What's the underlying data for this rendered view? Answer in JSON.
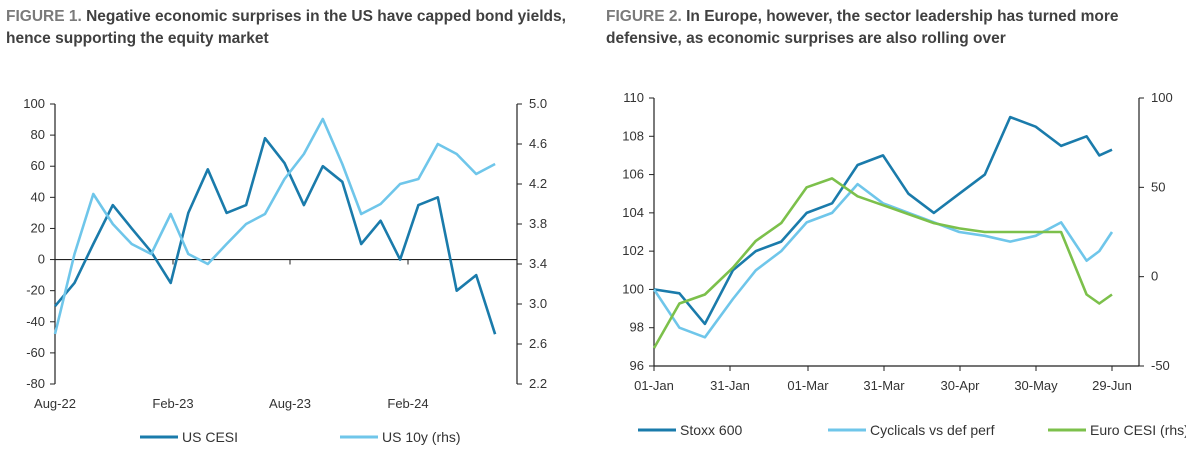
{
  "figure1": {
    "label": "FIGURE 1.",
    "title": "Negative economic surprises in the US have capped bond yields, hence supporting the equity market",
    "chart_data": {
      "type": "line",
      "x_ticks": [
        "Aug-22",
        "Feb-23",
        "Aug-23",
        "Feb-24"
      ],
      "ylim_left": [
        -80,
        100
      ],
      "yticks_left": [
        -80,
        -60,
        -40,
        -20,
        0,
        20,
        40,
        60,
        80,
        100
      ],
      "ylim_right": [
        2.2,
        5.0
      ],
      "yticks_right": [
        "2.2",
        "2.6",
        "3.0",
        "3.4",
        "3.8",
        "4.2",
        "4.6",
        "5.0"
      ],
      "legend_position": "bottom",
      "series": [
        {
          "name": "US CESI",
          "axis": "left",
          "color": "#1a7bab",
          "x": [
            "2022-08-01",
            "2022-09-01",
            "2022-10-01",
            "2022-11-01",
            "2022-12-01",
            "2023-01-01",
            "2023-02-01",
            "2023-03-01",
            "2023-04-01",
            "2023-05-01",
            "2023-06-01",
            "2023-07-01",
            "2023-08-01",
            "2023-09-01",
            "2023-10-01",
            "2023-11-01",
            "2023-12-01",
            "2024-01-01",
            "2024-02-01",
            "2024-03-01",
            "2024-04-01",
            "2024-05-01",
            "2024-06-01",
            "2024-07-01"
          ],
          "values": [
            -30,
            -15,
            10,
            35,
            20,
            5,
            -15,
            30,
            58,
            30,
            35,
            78,
            62,
            35,
            60,
            50,
            10,
            25,
            0,
            35,
            40,
            -20,
            -10,
            -48
          ]
        },
        {
          "name": "US 10y (rhs)",
          "axis": "right",
          "color": "#6fc6ea",
          "x": [
            "2022-08-01",
            "2022-09-01",
            "2022-10-01",
            "2022-11-01",
            "2022-12-01",
            "2023-01-01",
            "2023-02-01",
            "2023-03-01",
            "2023-04-01",
            "2023-05-01",
            "2023-06-01",
            "2023-07-01",
            "2023-08-01",
            "2023-09-01",
            "2023-10-01",
            "2023-11-01",
            "2023-12-01",
            "2024-01-01",
            "2024-02-01",
            "2024-03-01",
            "2024-04-01",
            "2024-05-01",
            "2024-06-01",
            "2024-07-01"
          ],
          "values": [
            2.7,
            3.5,
            4.1,
            3.8,
            3.6,
            3.5,
            3.9,
            3.5,
            3.4,
            3.6,
            3.8,
            3.9,
            4.25,
            4.5,
            4.85,
            4.4,
            3.9,
            4.0,
            4.2,
            4.25,
            4.6,
            4.5,
            4.3,
            4.4
          ]
        }
      ]
    }
  },
  "figure2": {
    "label": "FIGURE 2.",
    "title": "In Europe, however, the sector leadership has turned more defensive, as economic surprises are also rolling over",
    "chart_data": {
      "type": "line",
      "x_ticks": [
        "01-Jan",
        "31-Jan",
        "01-Mar",
        "31-Mar",
        "30-Apr",
        "30-May",
        "29-Jun"
      ],
      "ylim_left": [
        96,
        110
      ],
      "yticks_left": [
        96,
        98,
        100,
        102,
        104,
        106,
        108,
        110
      ],
      "ylim_right": [
        -50,
        100
      ],
      "yticks_right": [
        -50,
        0,
        50,
        100
      ],
      "legend_position": "bottom",
      "series": [
        {
          "name": "Stoxx 600",
          "axis": "left",
          "color": "#1a7bab",
          "x": [
            0,
            10,
            20,
            31,
            40,
            50,
            60,
            70,
            80,
            90,
            100,
            110,
            120,
            130,
            140,
            150,
            160,
            170,
            175,
            180
          ],
          "values": [
            100,
            99.8,
            98.2,
            101,
            102,
            102.5,
            104,
            104.5,
            106.5,
            107,
            105,
            104,
            105,
            106,
            109,
            108.5,
            107.5,
            108,
            107,
            107.3
          ]
        },
        {
          "name": "Cyclicals vs def perf",
          "axis": "left",
          "color": "#6fc6ea",
          "x": [
            0,
            10,
            20,
            31,
            40,
            50,
            60,
            70,
            80,
            90,
            100,
            110,
            120,
            130,
            140,
            150,
            160,
            170,
            175,
            180
          ],
          "values": [
            100,
            98,
            97.5,
            99.5,
            101,
            102,
            103.5,
            104,
            105.5,
            104.5,
            104,
            103.5,
            103,
            102.8,
            102.5,
            102.8,
            103.5,
            101.5,
            102,
            103
          ]
        },
        {
          "name": "Euro CESI (rhs)",
          "axis": "right",
          "color": "#7cc04b",
          "x": [
            0,
            10,
            20,
            31,
            40,
            50,
            60,
            70,
            80,
            90,
            100,
            110,
            120,
            130,
            140,
            150,
            160,
            170,
            175,
            180
          ],
          "values": [
            -40,
            -15,
            -10,
            5,
            20,
            30,
            50,
            55,
            45,
            40,
            35,
            30,
            27,
            25,
            25,
            25,
            25,
            -10,
            -15,
            -10
          ]
        }
      ]
    }
  }
}
